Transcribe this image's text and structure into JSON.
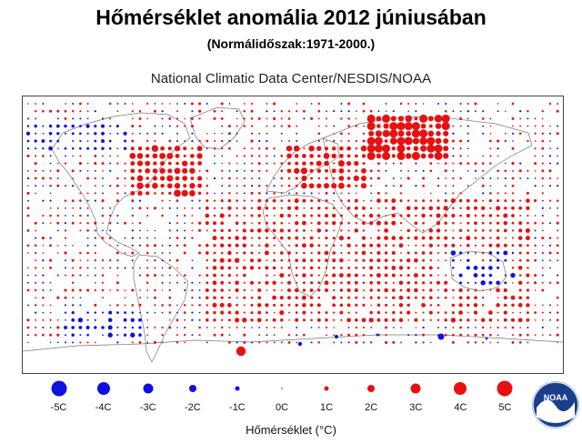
{
  "header": {
    "title": "Hőmérséklet anomália 2012 júniusában",
    "subtitle": "(Normálidőszak:1971-2000.)",
    "source": "National Climatic Data Center/NESDIS/NOAA"
  },
  "legend": {
    "items": [
      {
        "label": "-5C",
        "value": -5,
        "color": "#1010e0"
      },
      {
        "label": "-4C",
        "value": -4,
        "color": "#1010e0"
      },
      {
        "label": "-3C",
        "value": -3,
        "color": "#1010e0"
      },
      {
        "label": "-2C",
        "value": -2,
        "color": "#1010e0"
      },
      {
        "label": "-1C",
        "value": -1,
        "color": "#1010e0"
      },
      {
        "label": "0C",
        "value": 0,
        "color": "#888888"
      },
      {
        "label": "1C",
        "value": 1,
        "color": "#e81010"
      },
      {
        "label": "2C",
        "value": 2,
        "color": "#e81010"
      },
      {
        "label": "3C",
        "value": 3,
        "color": "#e81010"
      },
      {
        "label": "4C",
        "value": 4,
        "color": "#e81010"
      },
      {
        "label": "5C",
        "value": 5,
        "color": "#e81010"
      }
    ],
    "axis_label": "Hőmérséklet (°C)"
  },
  "logo": {
    "text": "NOAA",
    "icon": "noaa-logo-icon"
  },
  "colors": {
    "warm": "#e81010",
    "cold": "#1010e0",
    "coast": "#666666"
  }
}
